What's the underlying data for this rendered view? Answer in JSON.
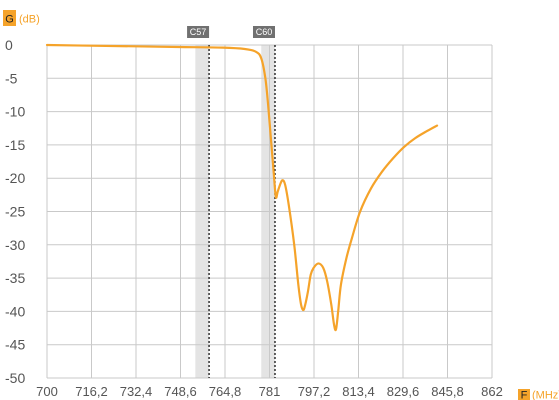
{
  "chart_data": {
    "type": "line",
    "title": "",
    "y_axis": {
      "letter": "G",
      "unit": "(dB)",
      "min": -50,
      "max": 0,
      "step": 5,
      "ticks": [
        "0",
        "-5",
        "-10",
        "-15",
        "-20",
        "-25",
        "-30",
        "-35",
        "-40",
        "-45",
        "-50"
      ]
    },
    "x_axis": {
      "letter": "F",
      "unit": "(MHz)",
      "min": 700,
      "max": 862,
      "ticks": [
        "700",
        "716,2",
        "732,4",
        "748,6",
        "764,8",
        "781",
        "797,2",
        "813,4",
        "829,6",
        "845,8",
        "862"
      ]
    },
    "grid": true,
    "channels": [
      {
        "label": "C57",
        "band": [
          754,
          759
        ],
        "marker": 759
      },
      {
        "label": "C60",
        "band": [
          778,
          783
        ],
        "marker": 783
      }
    ],
    "series": [
      {
        "color": "#f5a32a",
        "points": [
          [
            700,
            0
          ],
          [
            716,
            -0.1
          ],
          [
            732,
            -0.2
          ],
          [
            748,
            -0.3
          ],
          [
            764,
            -0.4
          ],
          [
            772,
            -0.6
          ],
          [
            776,
            -1.0
          ],
          [
            778,
            -2.0
          ],
          [
            779.5,
            -5.0
          ],
          [
            780.5,
            -9.0
          ],
          [
            781.5,
            -14.0
          ],
          [
            782.5,
            -19.0
          ],
          [
            783.3,
            -22.8
          ],
          [
            784,
            -22.0
          ],
          [
            785,
            -20.8
          ],
          [
            785.8,
            -20.3
          ],
          [
            786.7,
            -21.0
          ],
          [
            788,
            -24.0
          ],
          [
            790,
            -30.0
          ],
          [
            791.5,
            -36.0
          ],
          [
            792.5,
            -39.0
          ],
          [
            793.3,
            -39.8
          ],
          [
            794,
            -39.0
          ],
          [
            795,
            -37.0
          ],
          [
            796,
            -34.5
          ],
          [
            797,
            -33.5
          ],
          [
            798.8,
            -32.8
          ],
          [
            800.6,
            -33.5
          ],
          [
            802,
            -35.5
          ],
          [
            803.5,
            -39.0
          ],
          [
            804.5,
            -42.0
          ],
          [
            805.2,
            -42.7
          ],
          [
            806,
            -40.0
          ],
          [
            807,
            -36.0
          ],
          [
            809,
            -32.0
          ],
          [
            811,
            -29.0
          ],
          [
            814,
            -25.0
          ],
          [
            818,
            -21.5
          ],
          [
            822,
            -19.0
          ],
          [
            826,
            -17.0
          ],
          [
            830,
            -15.3
          ],
          [
            834,
            -14.0
          ],
          [
            838,
            -13.0
          ],
          [
            842,
            -12.1
          ]
        ]
      }
    ]
  }
}
